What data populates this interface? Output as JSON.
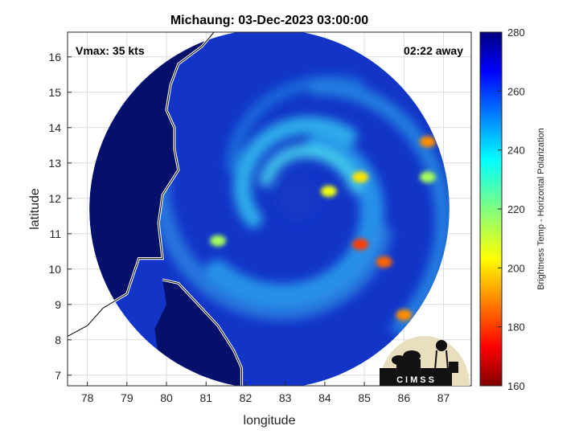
{
  "chart_data": {
    "type": "heatmap",
    "title": "Michaung: 03-Dec-2023 03:00:00",
    "xlabel": "longitude",
    "ylabel": "latitude",
    "xlim": [
      77.5,
      87.7
    ],
    "ylim": [
      6.7,
      16.7
    ],
    "xticks": [
      "78",
      "79",
      "80",
      "81",
      "82",
      "83",
      "84",
      "85",
      "86",
      "87"
    ],
    "yticks": [
      "7",
      "8",
      "9",
      "10",
      "11",
      "12",
      "13",
      "14",
      "15",
      "16"
    ],
    "grid": true,
    "colorbar": {
      "label": "Brightness Temp - Horizontal Polarization",
      "range": [
        160,
        280
      ],
      "ticks": [
        "160",
        "180",
        "200",
        "220",
        "240",
        "260",
        "280"
      ],
      "colormap": "jet"
    },
    "annotations": {
      "top_left": "Vmax: 35 kts",
      "top_right": "02:22 away"
    },
    "storm_center": {
      "lon": 83.3,
      "lat": 12.0
    },
    "swath": {
      "center_lon": 82.6,
      "center_lat": 11.7,
      "radius_deg": 4.8
    },
    "features": [
      {
        "lon": 84.9,
        "lat": 12.6,
        "tb": 200
      },
      {
        "lon": 84.1,
        "lat": 12.2,
        "tb": 205
      },
      {
        "lon": 84.9,
        "lat": 10.7,
        "tb": 180
      },
      {
        "lon": 85.5,
        "lat": 10.2,
        "tb": 185
      },
      {
        "lon": 86.6,
        "lat": 13.6,
        "tb": 190
      },
      {
        "lon": 86.0,
        "lat": 8.7,
        "tb": 190
      },
      {
        "lon": 81.3,
        "lat": 10.8,
        "tb": 215
      },
      {
        "lon": 86.6,
        "lat": 12.6,
        "tb": 215
      }
    ],
    "logo": "CIMSS"
  },
  "colors": {
    "ocean_low": "#0a1a8c",
    "ocean": "#1235c8",
    "land": "#05106a",
    "coastline": "#ffffff"
  }
}
